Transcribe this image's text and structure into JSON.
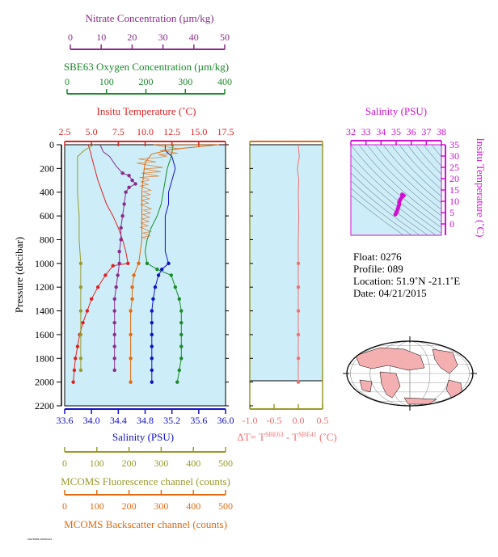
{
  "colors": {
    "nitrate": "#8a2b8a",
    "oxygen": "#1a8a2a",
    "temperature": "#e02020",
    "salinity": "#1010c8",
    "fluorescence": "#9a9a2a",
    "backscatter": "#e06a10",
    "delta": "#f07070",
    "ts": "#d010d0",
    "panel_bg": "#cdeef8"
  },
  "axes": {
    "nitrate": {
      "label": "Nitrate Concentration (µm/kg)",
      "ticks": [
        "0",
        "10",
        "20",
        "30",
        "40",
        "50"
      ],
      "range": [
        0,
        50
      ]
    },
    "oxygen": {
      "label": "SBE63 Oxygen Concentration (µm/kg)",
      "ticks": [
        "0",
        "100",
        "200",
        "300",
        "400"
      ],
      "range": [
        0,
        400
      ]
    },
    "temperature": {
      "label": "Insitu Temperature (˚C)",
      "ticks": [
        "2.5",
        "5.0",
        "7.5",
        "10.0",
        "12.5",
        "15.0",
        "17.5"
      ],
      "range": [
        2.5,
        17.5
      ]
    },
    "salinity": {
      "label": "Salinity (PSU)",
      "ticks": [
        "33.6",
        "34.0",
        "34.4",
        "34.8",
        "35.2",
        "35.6",
        "36.0"
      ],
      "range": [
        33.6,
        36.0
      ]
    },
    "fluorescence": {
      "label": "MCOMS Fluorescence channel (counts)",
      "ticks": [
        "0",
        "100",
        "200",
        "300",
        "400",
        "500"
      ],
      "range": [
        0,
        500
      ]
    },
    "backscatter": {
      "label": "MCOMS Backscatter channel (counts)",
      "ticks": [
        "0",
        "100",
        "200",
        "300",
        "400",
        "500"
      ],
      "range": [
        0,
        500
      ]
    },
    "pressure": {
      "label": "Pressure (decibar)",
      "ticks": [
        "0",
        "200",
        "400",
        "600",
        "800",
        "1000",
        "1200",
        "1400",
        "1600",
        "1800",
        "2000",
        "2200"
      ],
      "range": [
        0,
        2200
      ]
    },
    "delta": {
      "ticks": [
        "-1.0",
        "-0.5",
        "0.0",
        "0.5"
      ],
      "range": [
        -1.0,
        0.5
      ],
      "label_parts": {
        "a": "ΔT= T",
        "sup1": "SBE63",
        "b": " - T",
        "sup2": "SBE41",
        "c": " (˚C)"
      }
    },
    "ts_salinity": {
      "label": "Salinity (PSU)",
      "ticks": [
        "32",
        "33",
        "34",
        "35",
        "36",
        "37",
        "38"
      ],
      "range": [
        32,
        38
      ]
    },
    "ts_temperature": {
      "label": "Insitu Temperature (˚C)",
      "ticks": [
        "0",
        "5",
        "10",
        "15",
        "20",
        "25",
        "30",
        "35"
      ],
      "range": [
        -5,
        35
      ]
    }
  },
  "info": {
    "float": "Float:  0276",
    "profile": "Profile:  089",
    "location": "Location:  51.9˚N  -21.1˚E",
    "date": "Date:  04/21/2015"
  },
  "footer_text": "F0276/089 2015/04/21",
  "chart_data": [
    {
      "type": "line",
      "y_axis": "pressure",
      "series": [
        {
          "name": "temperature",
          "axis": "temperature",
          "points": [
            [
              4.7,
              0
            ],
            [
              4.8,
              30
            ],
            [
              4.9,
              60
            ],
            [
              5.0,
              100
            ],
            [
              5.3,
              200
            ],
            [
              5.6,
              300
            ],
            [
              6.0,
              400
            ],
            [
              6.4,
              500
            ],
            [
              7.0,
              600
            ],
            [
              7.5,
              700
            ],
            [
              7.9,
              800
            ],
            [
              8.2,
              900
            ],
            [
              8.4,
              1000
            ],
            [
              7.0,
              1020
            ],
            [
              6.3,
              1100
            ],
            [
              5.6,
              1200
            ],
            [
              5.0,
              1300
            ],
            [
              4.6,
              1400
            ],
            [
              4.2,
              1500
            ],
            [
              3.9,
              1600
            ],
            [
              3.7,
              1700
            ],
            [
              3.5,
              1800
            ],
            [
              3.4,
              1900
            ],
            [
              3.3,
              2000
            ]
          ],
          "markers_from": 1000
        },
        {
          "name": "salinity",
          "axis": "salinity",
          "points": [
            [
              35.1,
              0
            ],
            [
              35.1,
              50
            ],
            [
              35.2,
              100
            ],
            [
              35.25,
              200
            ],
            [
              35.2,
              300
            ],
            [
              35.15,
              400
            ],
            [
              35.15,
              500
            ],
            [
              35.1,
              600
            ],
            [
              35.1,
              700
            ],
            [
              35.1,
              800
            ],
            [
              35.1,
              900
            ],
            [
              35.15,
              1000
            ],
            [
              35.05,
              1050
            ],
            [
              35.0,
              1100
            ],
            [
              34.95,
              1200
            ],
            [
              34.92,
              1300
            ],
            [
              34.9,
              1400
            ],
            [
              34.9,
              1500
            ],
            [
              34.9,
              1600
            ],
            [
              34.9,
              1700
            ],
            [
              34.9,
              1800
            ],
            [
              34.9,
              1900
            ],
            [
              34.9,
              2000
            ]
          ],
          "markers_from": 1000
        },
        {
          "name": "nitrate",
          "axis": "nitrate",
          "points": [
            [
              11,
              0
            ],
            [
              12,
              60
            ],
            [
              14,
              100
            ],
            [
              15,
              140
            ],
            [
              16,
              180
            ],
            [
              18,
              240
            ],
            [
              20,
              260
            ],
            [
              21,
              300
            ],
            [
              22,
              330
            ],
            [
              20,
              360
            ],
            [
              19,
              400
            ],
            [
              18.5,
              500
            ],
            [
              18,
              600
            ],
            [
              17.5,
              700
            ],
            [
              17.5,
              800
            ],
            [
              17,
              900
            ],
            [
              17,
              1000
            ],
            [
              16.5,
              1100
            ],
            [
              16,
              1200
            ],
            [
              15.5,
              1300
            ],
            [
              15.5,
              1400
            ],
            [
              15.5,
              1500
            ],
            [
              15.5,
              1600
            ],
            [
              15.5,
              1700
            ],
            [
              15.5,
              1800
            ],
            [
              15.5,
              1900
            ]
          ],
          "markers_from": 200
        },
        {
          "name": "oxygen",
          "axis": "oxygen",
          "points": [
            [
              270,
              0
            ],
            [
              265,
              100
            ],
            [
              255,
              200
            ],
            [
              250,
              300
            ],
            [
              245,
              400
            ],
            [
              240,
              500
            ],
            [
              230,
              600
            ],
            [
              215,
              700
            ],
            [
              205,
              800
            ],
            [
              200,
              900
            ],
            [
              205,
              1000
            ],
            [
              230,
              1050
            ],
            [
              265,
              1100
            ],
            [
              275,
              1200
            ],
            [
              285,
              1300
            ],
            [
              290,
              1400
            ],
            [
              290,
              1500
            ],
            [
              290,
              1600
            ],
            [
              290,
              1700
            ],
            [
              290,
              1800
            ],
            [
              285,
              1900
            ],
            [
              280,
              2000
            ]
          ],
          "markers_from": 1000
        },
        {
          "name": "fluorescence",
          "axis": "fluorescence",
          "points": [
            [
              90,
              0
            ],
            [
              60,
              50
            ],
            [
              40,
              100
            ],
            [
              40,
              200
            ],
            [
              40,
              400
            ],
            [
              45,
              600
            ],
            [
              45,
              800
            ],
            [
              50,
              1000
            ],
            [
              50,
              1200
            ],
            [
              50,
              1400
            ],
            [
              50,
              1600
            ],
            [
              50,
              1800
            ],
            [
              50,
              1900
            ]
          ],
          "markers_from": 1000
        },
        {
          "name": "backscatter",
          "axis": "backscatter",
          "points": [
            [
              480,
              0
            ],
            [
              330,
              40
            ],
            [
              270,
              80
            ],
            [
              250,
              150
            ],
            [
              245,
              250
            ],
            [
              240,
              400
            ],
            [
              240,
              600
            ],
            [
              240,
              800
            ],
            [
              230,
              1000
            ],
            [
              215,
              1100
            ],
            [
              210,
              1200
            ],
            [
              210,
              1300
            ],
            [
              205,
              1400
            ],
            [
              205,
              1600
            ],
            [
              205,
              1800
            ],
            [
              205,
              2000
            ]
          ],
          "markers_from": 1000
        }
      ]
    },
    {
      "type": "line",
      "y_axis": "pressure",
      "series": [
        {
          "name": "delta",
          "axis": "delta",
          "points": [
            [
              0,
              0
            ],
            [
              0.02,
              100
            ],
            [
              -0.02,
              200
            ],
            [
              0.01,
              300
            ],
            [
              0,
              400
            ],
            [
              0.01,
              600
            ],
            [
              0,
              800
            ],
            [
              0,
              1000
            ],
            [
              0,
              1200
            ],
            [
              0,
              1400
            ],
            [
              0,
              1600
            ],
            [
              0,
              1800
            ],
            [
              0,
              2000
            ]
          ],
          "markers_from": 1000
        }
      ]
    },
    {
      "type": "scatter",
      "x_axis": "ts_salinity",
      "y_axis": "ts_temperature",
      "series": [
        {
          "name": "ts",
          "points": [
            [
              35.4,
              13
            ],
            [
              35.5,
              12.5
            ],
            [
              35.4,
              12
            ],
            [
              35.3,
              11
            ],
            [
              35.25,
              10.5
            ],
            [
              35.2,
              9.5
            ],
            [
              35.2,
              8.5
            ],
            [
              35.15,
              7.5
            ],
            [
              35.1,
              6.5
            ],
            [
              35.05,
              5.5
            ],
            [
              35.0,
              4.8
            ],
            [
              34.95,
              4.2
            ]
          ]
        }
      ]
    }
  ]
}
